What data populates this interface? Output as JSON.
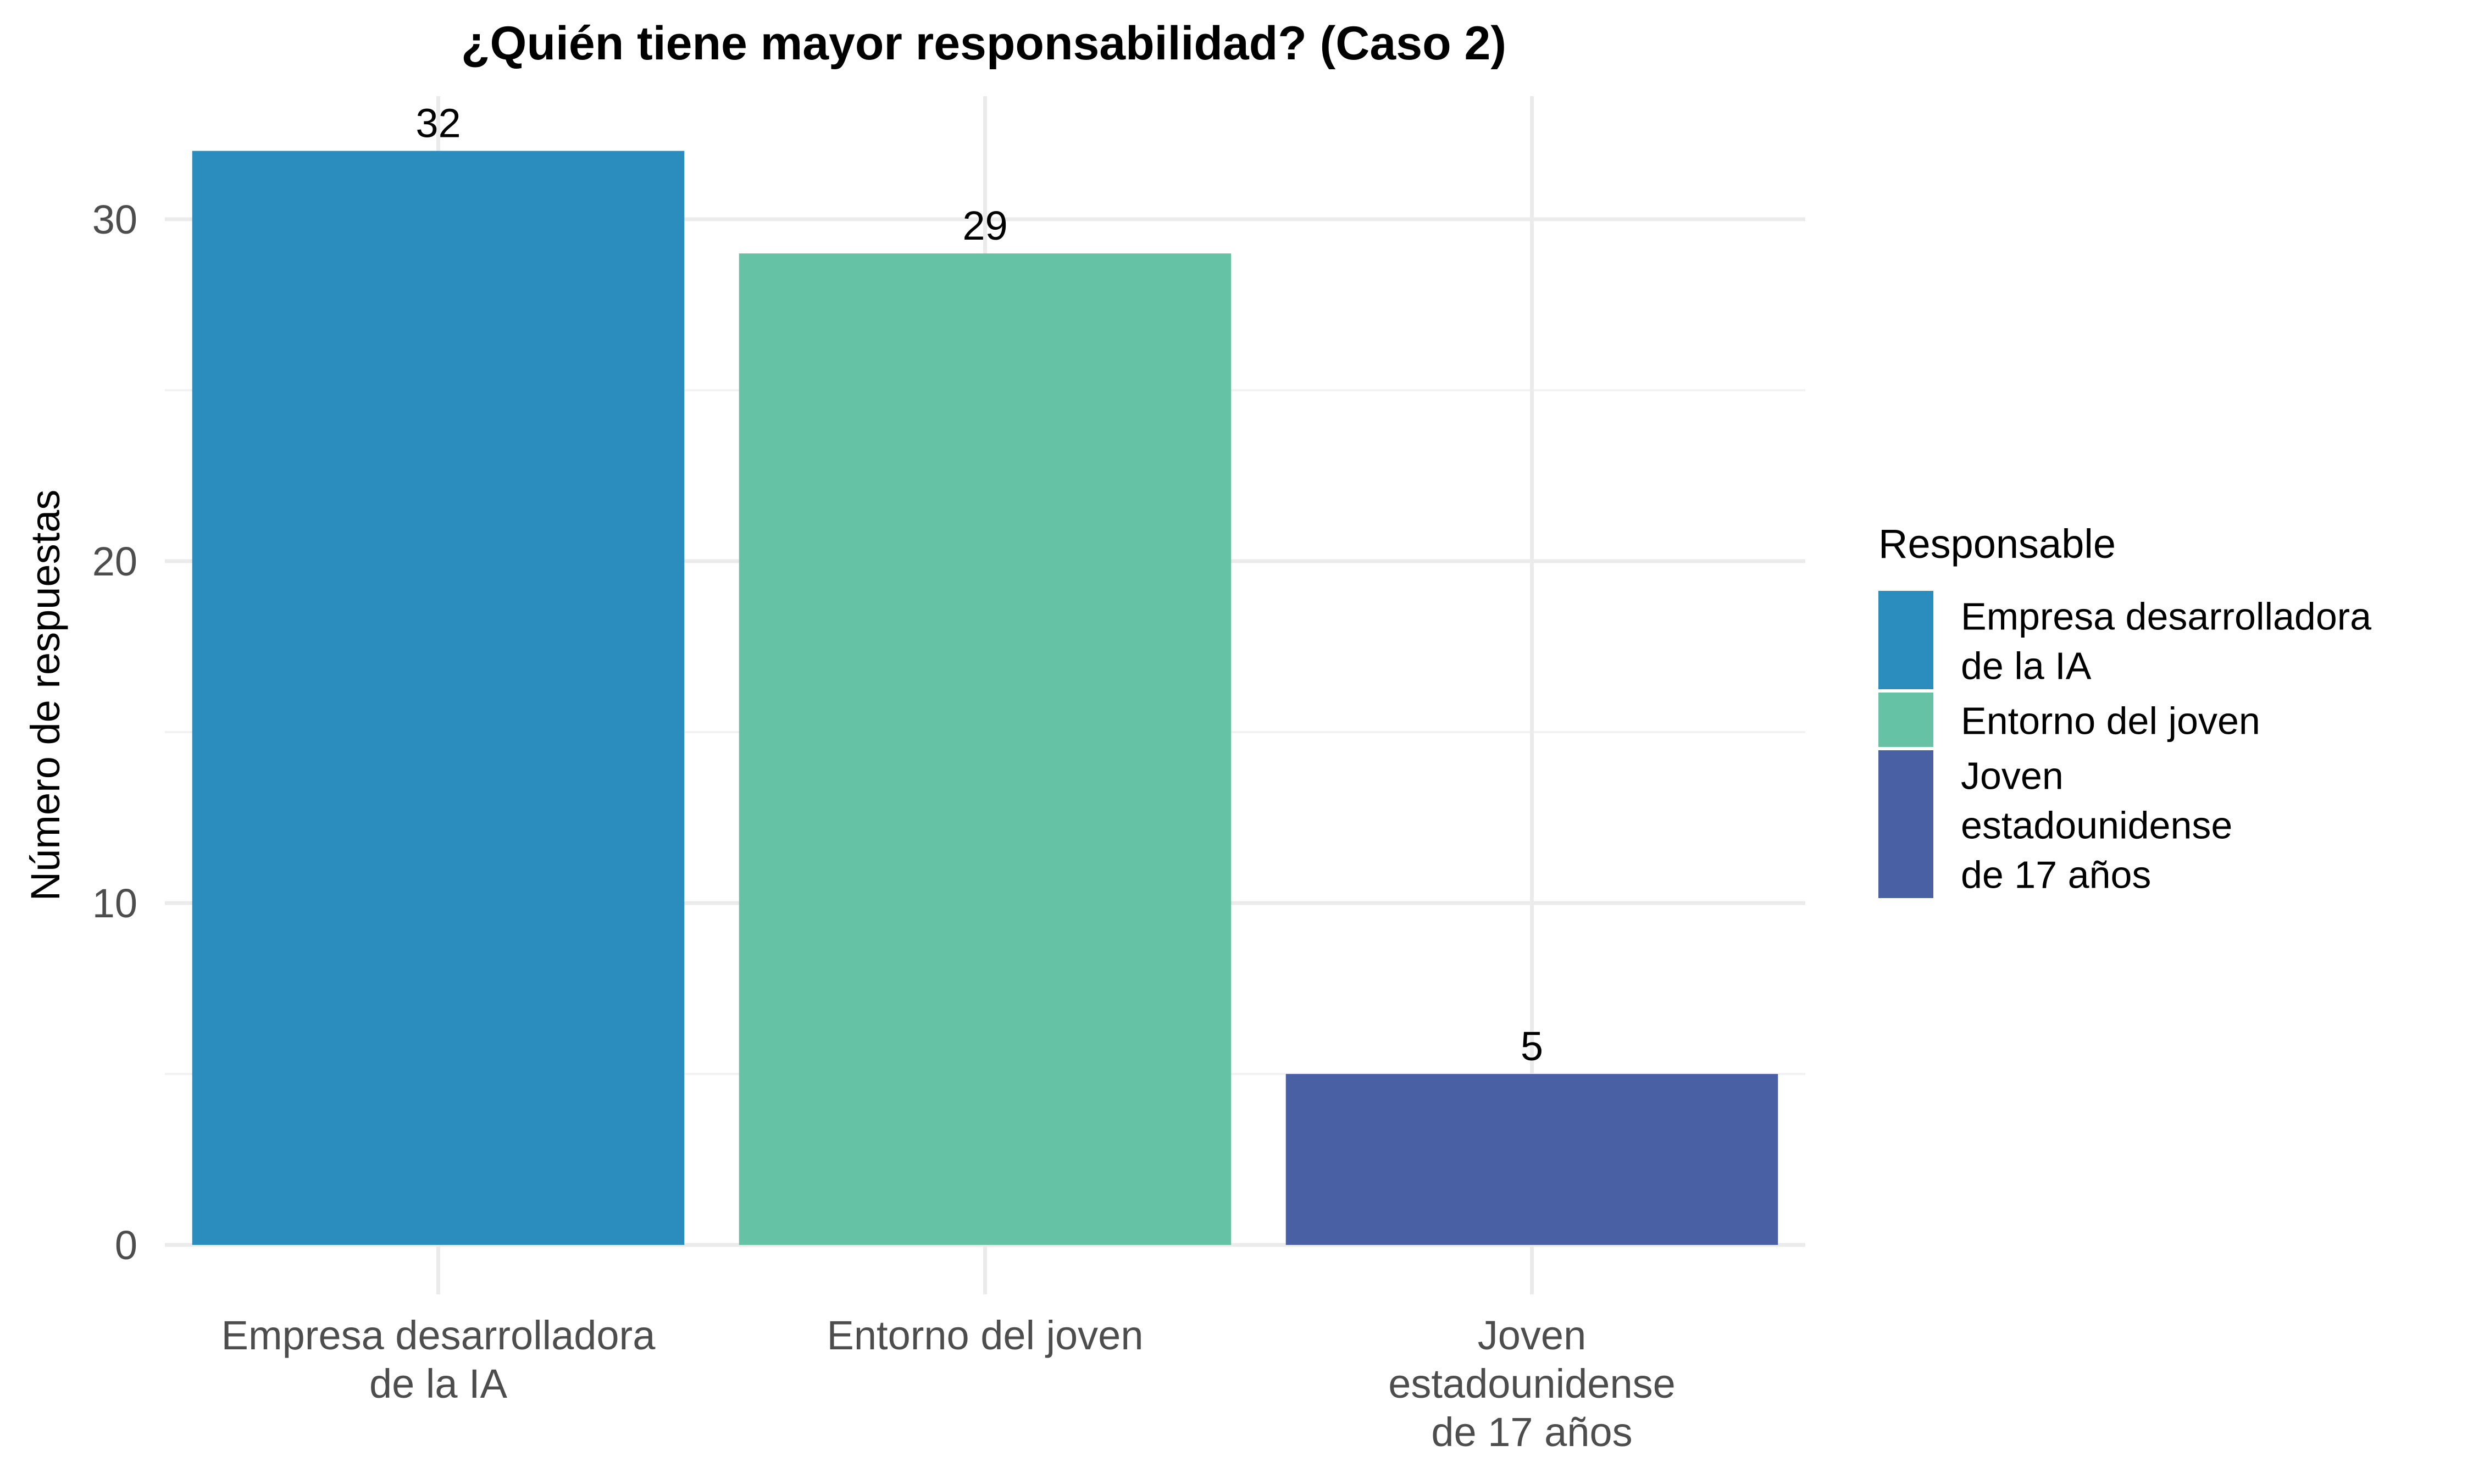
{
  "chart_data": {
    "type": "bar",
    "title": "¿Quién tiene mayor responsabilidad? (Caso 2)",
    "xlabel": "",
    "ylabel": "Número de respuestas",
    "categories": [
      [
        "Empresa desarrolladora",
        "de la IA"
      ],
      [
        "Entorno del joven"
      ],
      [
        "Joven",
        "estadounidense",
        "de 17 años"
      ]
    ],
    "values": [
      32,
      29,
      5
    ],
    "data_labels": [
      "32",
      "29",
      "5"
    ],
    "colors": [
      "#2b8cbe",
      "#66c2a5",
      "#4a60a5"
    ],
    "ylim": [
      0,
      33.6
    ],
    "yticks": [
      0,
      10,
      20,
      30
    ],
    "ytick_labels": [
      "0",
      "10",
      "20",
      "30"
    ],
    "grid": true,
    "legend": {
      "title": "Responsable",
      "position": "right",
      "entries": [
        [
          "Empresa desarrolladora",
          "de la IA"
        ],
        [
          "Entorno del joven"
        ],
        [
          "Joven",
          "estadounidense",
          "de 17 años"
        ]
      ]
    }
  }
}
